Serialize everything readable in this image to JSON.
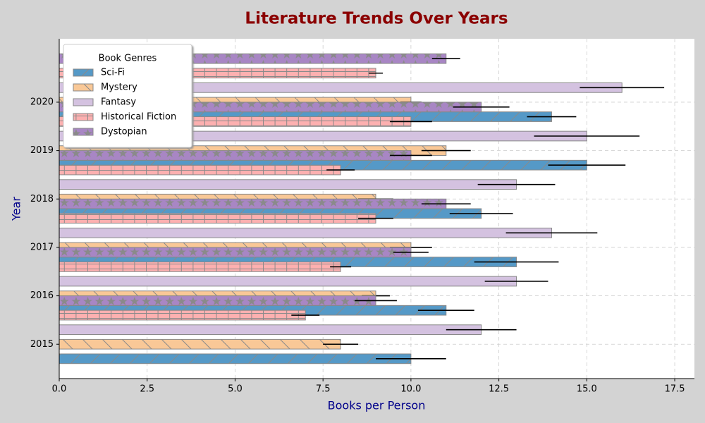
{
  "chart_data": {
    "type": "hbar_error",
    "title": "Literature Trends Over Years",
    "xlabel": "Books per Person",
    "ylabel": "Year",
    "legend_title": "Book Genres",
    "legend": "upper left",
    "grid": true,
    "xlim": [
      0,
      18.06
    ],
    "ylim": [
      2014.29,
      2021.31
    ],
    "xticks": [
      {
        "value": 0,
        "label": "0.0"
      },
      2.5,
      {
        "value": 5,
        "label": "5.0"
      },
      7.5,
      {
        "value": 10,
        "label": "10.0"
      },
      12.5,
      {
        "value": 15,
        "label": "15.0"
      },
      17.5
    ],
    "yticks": [
      2015,
      2016,
      2017,
      2018,
      2019,
      2020
    ],
    "series": [
      {
        "name": "Sci-Fi",
        "color": "#5599c7",
        "hatch": "/",
        "x": [
          2015,
          2016,
          2017,
          2018,
          2019,
          2020
        ],
        "values": [
          10,
          11,
          13,
          12,
          15,
          14
        ],
        "errors": [
          1,
          0.8,
          1.2,
          0.9,
          1.1,
          0.7
        ]
      },
      {
        "name": "Mystery",
        "color": "#f9c897",
        "hatch": "\\",
        "x": [
          2015,
          2016,
          2017,
          2018,
          2019,
          2020
        ],
        "values": [
          8,
          9,
          10,
          9,
          11,
          10
        ],
        "errors": [
          0.5,
          0.4,
          0.6,
          0.5,
          0.7,
          0.3
        ]
      },
      {
        "name": "Fantasy",
        "color": "#d4c2e0",
        "hatch": "",
        "x": [
          2015,
          2016,
          2017,
          2018,
          2019,
          2020
        ],
        "values": [
          12,
          13,
          14,
          13,
          15,
          16
        ],
        "errors": [
          1,
          0.9,
          1.3,
          1.1,
          1.5,
          1.2
        ]
      },
      {
        "name": "Historical Fiction",
        "color": "#fdb0b0",
        "hatch": "+",
        "x": [
          2016,
          2017,
          2018,
          2019,
          2020,
          2021
        ],
        "values": [
          7,
          8,
          9,
          8,
          10,
          9
        ],
        "errors": [
          0.4,
          0.3,
          0.5,
          0.4,
          0.6,
          0.2
        ]
      },
      {
        "name": "Dystopian",
        "color": "#a886c4",
        "hatch": "*",
        "x": [
          2016,
          2017,
          2018,
          2019,
          2020,
          2021
        ],
        "values": [
          9,
          10,
          11,
          10,
          12,
          11
        ],
        "errors": [
          0.6,
          0.5,
          0.7,
          0.6,
          0.8,
          0.4
        ]
      }
    ]
  }
}
